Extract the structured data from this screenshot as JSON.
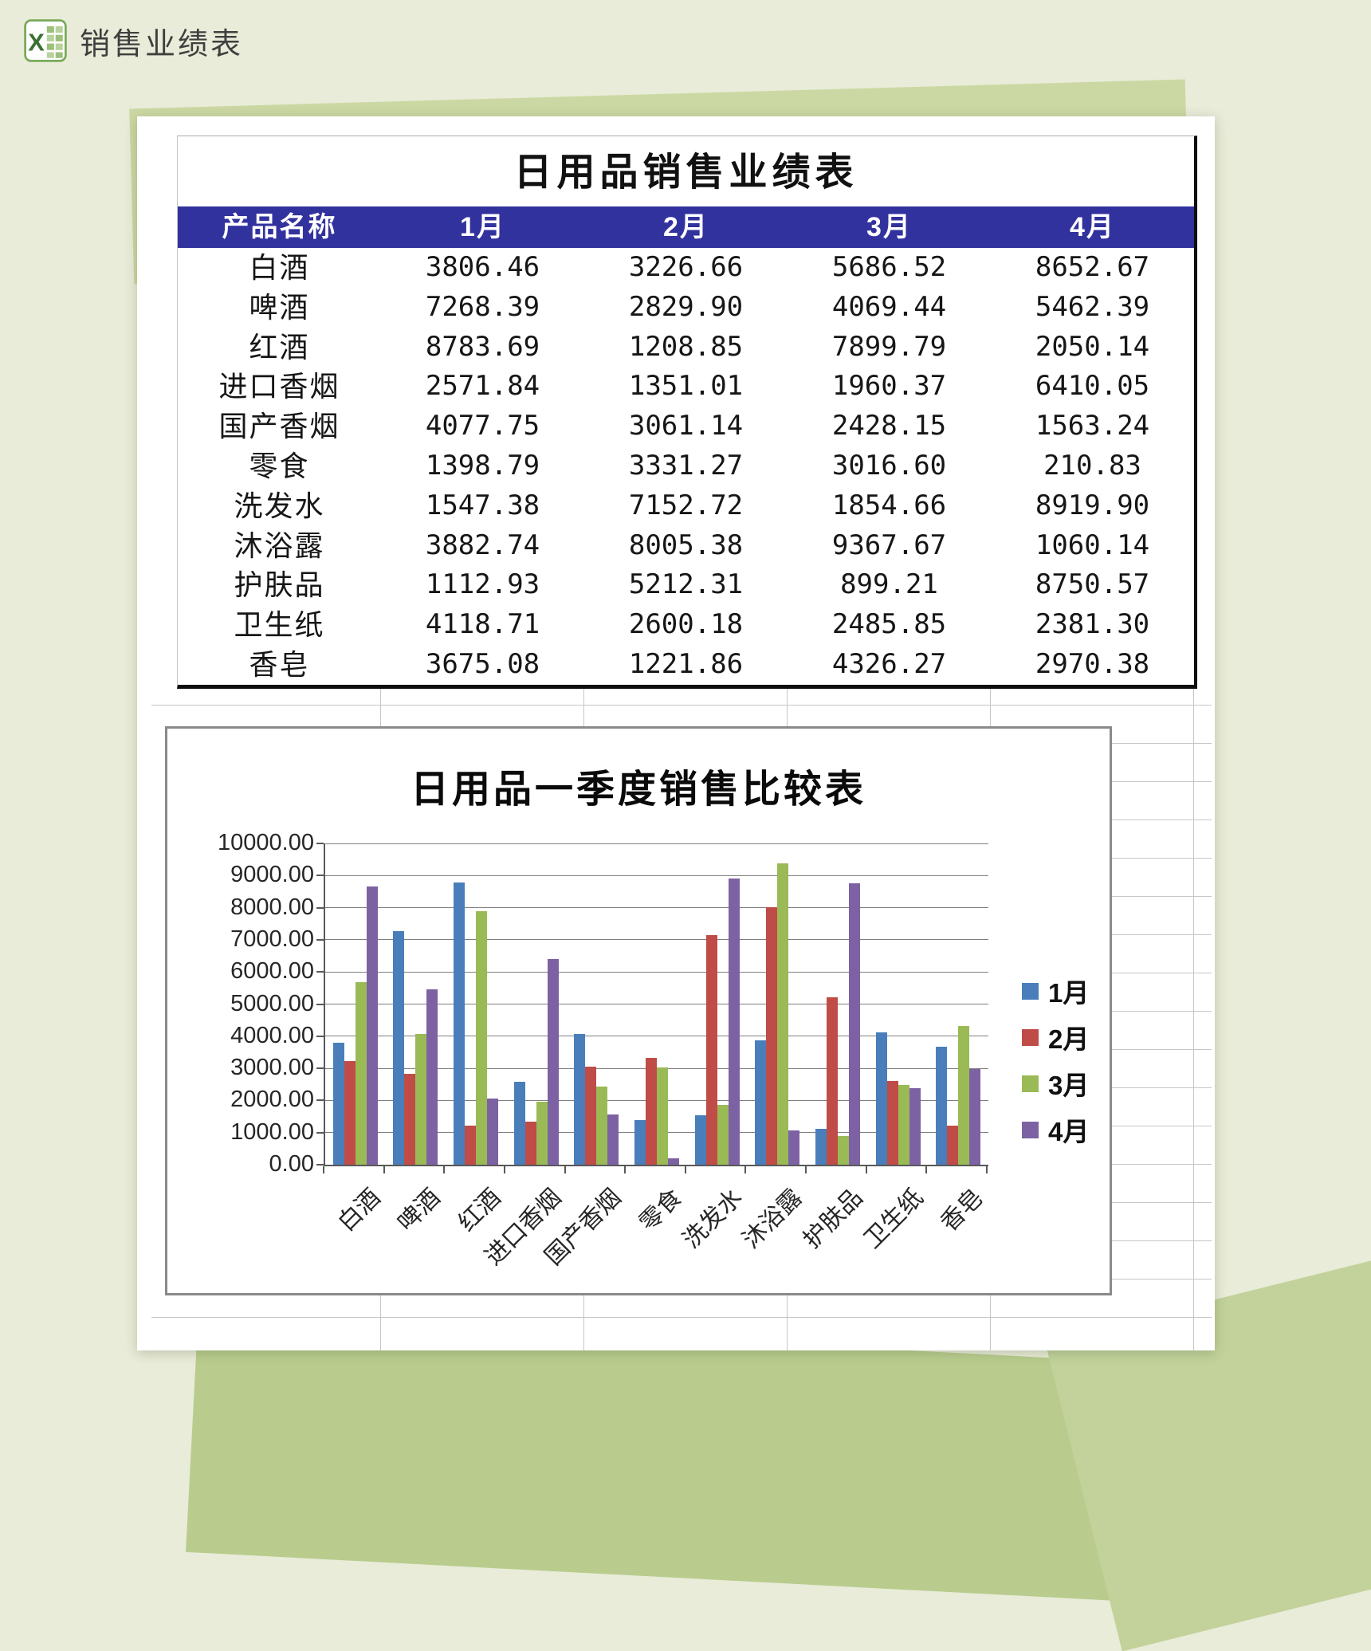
{
  "page": {
    "app_title": "销售业绩表"
  },
  "colors": {
    "header_blue": "#32329e",
    "series_jan": "#4a7ebb",
    "series_feb": "#bf4c47",
    "series_mar": "#9aba56",
    "series_apr": "#7d62a3"
  },
  "table": {
    "title": "日用品销售业绩表",
    "columns": [
      "产品名称",
      "1月",
      "2月",
      "3月",
      "4月"
    ],
    "rows": [
      {
        "name": "白酒",
        "values": [
          "3806.46",
          "3226.66",
          "5686.52",
          "8652.67"
        ]
      },
      {
        "name": "啤酒",
        "values": [
          "7268.39",
          "2829.90",
          "4069.44",
          "5462.39"
        ]
      },
      {
        "name": "红酒",
        "values": [
          "8783.69",
          "1208.85",
          "7899.79",
          "2050.14"
        ]
      },
      {
        "name": "进口香烟",
        "values": [
          "2571.84",
          "1351.01",
          "1960.37",
          "6410.05"
        ]
      },
      {
        "name": "国产香烟",
        "values": [
          "4077.75",
          "3061.14",
          "2428.15",
          "1563.24"
        ]
      },
      {
        "name": "零食",
        "values": [
          "1398.79",
          "3331.27",
          "3016.60",
          "210.83"
        ]
      },
      {
        "name": "洗发水",
        "values": [
          "1547.38",
          "7152.72",
          "1854.66",
          "8919.90"
        ]
      },
      {
        "name": "沐浴露",
        "values": [
          "3882.74",
          "8005.38",
          "9367.67",
          "1060.14"
        ]
      },
      {
        "name": "护肤品",
        "values": [
          "1112.93",
          "5212.31",
          "899.21",
          "8750.57"
        ]
      },
      {
        "name": "卫生纸",
        "values": [
          "4118.71",
          "2600.18",
          "2485.85",
          "2381.30"
        ]
      },
      {
        "name": "香皂",
        "values": [
          "3675.08",
          "1221.86",
          "4326.27",
          "2970.38"
        ]
      }
    ]
  },
  "chart_data": {
    "type": "bar",
    "title": "日用品一季度销售比较表",
    "categories": [
      "白酒",
      "啤酒",
      "红酒",
      "进口香烟",
      "国产香烟",
      "零食",
      "洗发水",
      "沐浴露",
      "护肤品",
      "卫生纸",
      "香皂"
    ],
    "series": [
      {
        "name": "1月",
        "color": "#4a7ebb",
        "values": [
          3806.46,
          7268.39,
          8783.69,
          2571.84,
          4077.75,
          1398.79,
          1547.38,
          3882.74,
          1112.93,
          4118.71,
          3675.08
        ]
      },
      {
        "name": "2月",
        "color": "#bf4c47",
        "values": [
          3226.66,
          2829.9,
          1208.85,
          1351.01,
          3061.14,
          3331.27,
          7152.72,
          8005.38,
          5212.31,
          2600.18,
          1221.86
        ]
      },
      {
        "name": "3月",
        "color": "#9aba56",
        "values": [
          5686.52,
          4069.44,
          7899.79,
          1960.37,
          2428.15,
          3016.6,
          1854.66,
          9367.67,
          899.21,
          2485.85,
          4326.27
        ]
      },
      {
        "name": "4月",
        "color": "#7d62a3",
        "values": [
          8652.67,
          5462.39,
          2050.14,
          6410.05,
          1563.24,
          210.83,
          8919.9,
          1060.14,
          8750.57,
          2381.3,
          2970.38
        ]
      }
    ],
    "xlabel": "",
    "ylabel": "",
    "ylim": [
      0,
      10000
    ],
    "ytick_step": 1000,
    "ytick_format": "0.00",
    "grid": "horizontal",
    "legend_position": "right"
  }
}
